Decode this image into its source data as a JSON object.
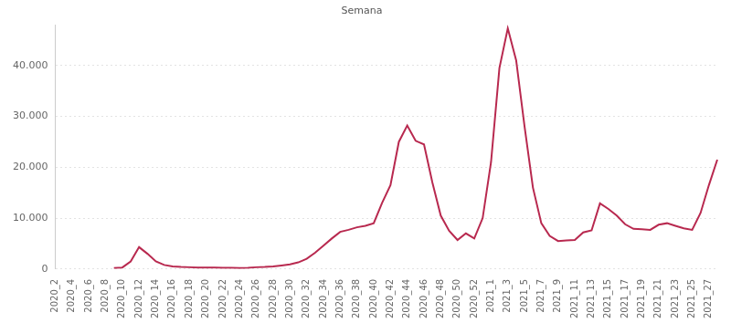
{
  "chart_data": {
    "type": "line",
    "title": "Semana",
    "categories": [
      "2020_2",
      null,
      "2020_4",
      null,
      "2020_6",
      null,
      "2020_8",
      null,
      "2020_10",
      null,
      "2020_12",
      null,
      "2020_14",
      null,
      "2020_16",
      null,
      "2020_18",
      null,
      "2020_20",
      null,
      "2020_22",
      null,
      "2020_24",
      null,
      "2020_26",
      null,
      "2020_28",
      null,
      "2020_30",
      null,
      "2020_32",
      null,
      "2020_34",
      null,
      "2020_36",
      null,
      "2020_38",
      null,
      "2020_40",
      null,
      "2020_42",
      null,
      "2020_44",
      null,
      "2020_46",
      null,
      "2020_48",
      null,
      "2020_50",
      null,
      "2020_52",
      null,
      "2021_1",
      null,
      "2021_3",
      null,
      "2021_5",
      null,
      "2021_7",
      null,
      "2021_9",
      null,
      "2021_11",
      null,
      "2021_13",
      null,
      "2021_15",
      null,
      "2021_17",
      null,
      "2021_19",
      null,
      "2021_21",
      null,
      "2021_23",
      null,
      "2021_25",
      null,
      "2021_27",
      null
    ],
    "values": [
      null,
      null,
      null,
      null,
      null,
      null,
      null,
      200,
      300,
      1500,
      4300,
      3000,
      1500,
      800,
      500,
      400,
      350,
      300,
      300,
      300,
      250,
      250,
      200,
      250,
      350,
      400,
      500,
      700,
      900,
      1300,
      2000,
      3200,
      4600,
      6000,
      7300,
      7700,
      8200,
      8500,
      9000,
      13000,
      16500,
      25000,
      28200,
      25200,
      24500,
      17000,
      10500,
      7500,
      5700,
      7000,
      6000,
      10000,
      21000,
      39500,
      47300,
      41000,
      28000,
      16000,
      9000,
      6500,
      5500,
      5600,
      5700,
      7200,
      7600,
      12900,
      11800,
      10500,
      8800,
      7900,
      7800,
      7700,
      8700,
      9000,
      8500,
      8000,
      7700,
      11000,
      16500,
      21500
    ],
    "color": "#b8294f",
    "ylim": [
      0,
      48000
    ],
    "yticks": [
      0,
      {
        "value": 10000,
        "label": "10.000"
      },
      {
        "value": 20000,
        "label": "20.000"
      },
      {
        "value": 30000,
        "label": "30.000"
      },
      {
        "value": 40000,
        "label": "40.000"
      }
    ],
    "grid": true
  }
}
